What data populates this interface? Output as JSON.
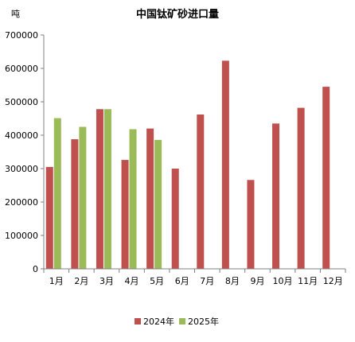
{
  "chart_data": {
    "type": "bar",
    "title": "中国钛矿砂进口量",
    "ylabel": "吨",
    "xlabel": "",
    "ylim": [
      0,
      700000
    ],
    "yticks": [
      "0",
      "100000",
      "200000",
      "300000",
      "400000",
      "500000",
      "600000",
      "700000"
    ],
    "ytick_values": [
      0,
      100000,
      200000,
      300000,
      400000,
      500000,
      600000,
      700000
    ],
    "categories": [
      "1月",
      "2月",
      "3月",
      "4月",
      "5月",
      "6月",
      "7月",
      "8月",
      "9月",
      "10月",
      "11月",
      "12月"
    ],
    "series": [
      {
        "name": "2024年",
        "color": "#c0504d",
        "values": [
          305000,
          388000,
          478000,
          326000,
          420000,
          300000,
          462000,
          623000,
          266000,
          435000,
          482000,
          545000
        ]
      },
      {
        "name": "2025年",
        "color": "#9bbb59",
        "values": [
          451000,
          425000,
          478000,
          418000,
          386000,
          null,
          null,
          null,
          null,
          null,
          null,
          null
        ]
      }
    ],
    "grid": false,
    "legend_position": "bottom"
  }
}
